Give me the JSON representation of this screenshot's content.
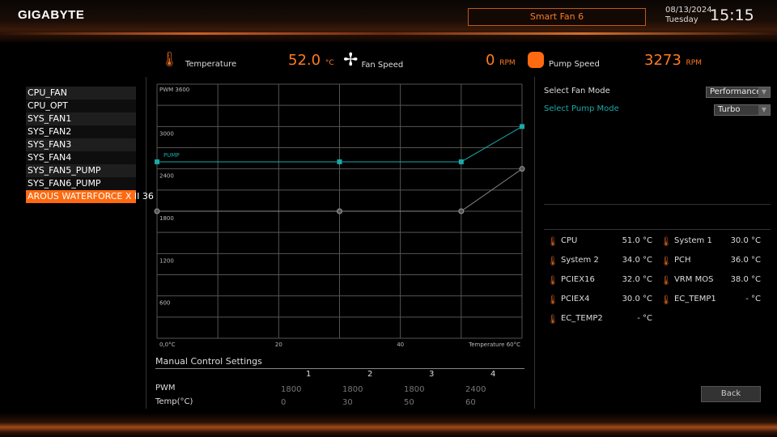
{
  "header": {
    "logo": "GIGABYTE",
    "tab": "Smart Fan 6",
    "date": "08/13/2024",
    "day": "Tuesday",
    "time": "15:15"
  },
  "stats": {
    "temperature": {
      "label": "Temperature",
      "value": "52.0",
      "unit": "°C",
      "icon": "thermometer-icon"
    },
    "fan": {
      "label": "Fan Speed",
      "value": "0",
      "unit": "RPM",
      "icon": "fan-icon"
    },
    "pump": {
      "label": "Pump Speed",
      "value": "3273",
      "unit": "RPM",
      "icon": "pump-icon"
    }
  },
  "sidebar": {
    "items": [
      "CPU_FAN",
      "CPU_OPT",
      "SYS_FAN1",
      "SYS_FAN2",
      "SYS_FAN3",
      "SYS_FAN4",
      "SYS_FAN5_PUMP",
      "SYS_FAN6_PUMP",
      "AROUS WATERFORCE X II 36"
    ],
    "active": 8
  },
  "modes": {
    "fan_label": "Select Fan Mode",
    "fan_value": "Performance",
    "pump_label": "Select Pump Mode",
    "pump_value": "Turbo"
  },
  "temps": [
    {
      "name": "CPU",
      "value": "51.0 °C"
    },
    {
      "name": "System 1",
      "value": "30.0 °C"
    },
    {
      "name": "System 2",
      "value": "34.0 °C"
    },
    {
      "name": "PCH",
      "value": "36.0 °C"
    },
    {
      "name": "PCIEX16",
      "value": "32.0 °C"
    },
    {
      "name": "VRM MOS",
      "value": "38.0 °C"
    },
    {
      "name": "PCIEX4",
      "value": "30.0 °C"
    },
    {
      "name": "EC_TEMP1",
      "value": "- °C"
    },
    {
      "name": "EC_TEMP2",
      "value": "- °C"
    }
  ],
  "manual": {
    "title": "Manual Control Settings",
    "cols": [
      "1",
      "2",
      "3",
      "4"
    ],
    "pwm_label": "PWM",
    "pwm": [
      "1800",
      "1800",
      "1800",
      "2400"
    ],
    "temp_label": "Temp(°C)",
    "temp": [
      "0",
      "30",
      "50",
      "60"
    ]
  },
  "back": "Back",
  "colors": {
    "accent": "#ff7a20",
    "pump": "#1aa8a8",
    "fan": "#888888"
  },
  "chart_data": {
    "type": "line",
    "xlabel": "Temperature 60°C",
    "ylabel": "PWM 3600",
    "xlim": [
      0,
      60
    ],
    "ylim": [
      0,
      3600
    ],
    "grid": true,
    "x_ticks": [
      "0,0°C",
      "20",
      "40"
    ],
    "y_ticks": [
      {
        "v": 3000,
        "t": "3000"
      },
      {
        "v": 2400,
        "t": "2400"
      },
      {
        "v": 1800,
        "t": "1800"
      },
      {
        "v": 1200,
        "t": "1200"
      },
      {
        "v": 600,
        "t": "600"
      }
    ],
    "series": [
      {
        "name": "PUMP",
        "x": [
          0,
          30,
          50,
          60
        ],
        "y": [
          2500,
          2500,
          2500,
          3000
        ]
      },
      {
        "x": [
          0,
          30,
          50,
          60
        ],
        "y": [
          1800,
          1800,
          1800,
          2400
        ],
        "point_labels": [
          "1",
          "2",
          "3",
          "4"
        ]
      }
    ]
  }
}
